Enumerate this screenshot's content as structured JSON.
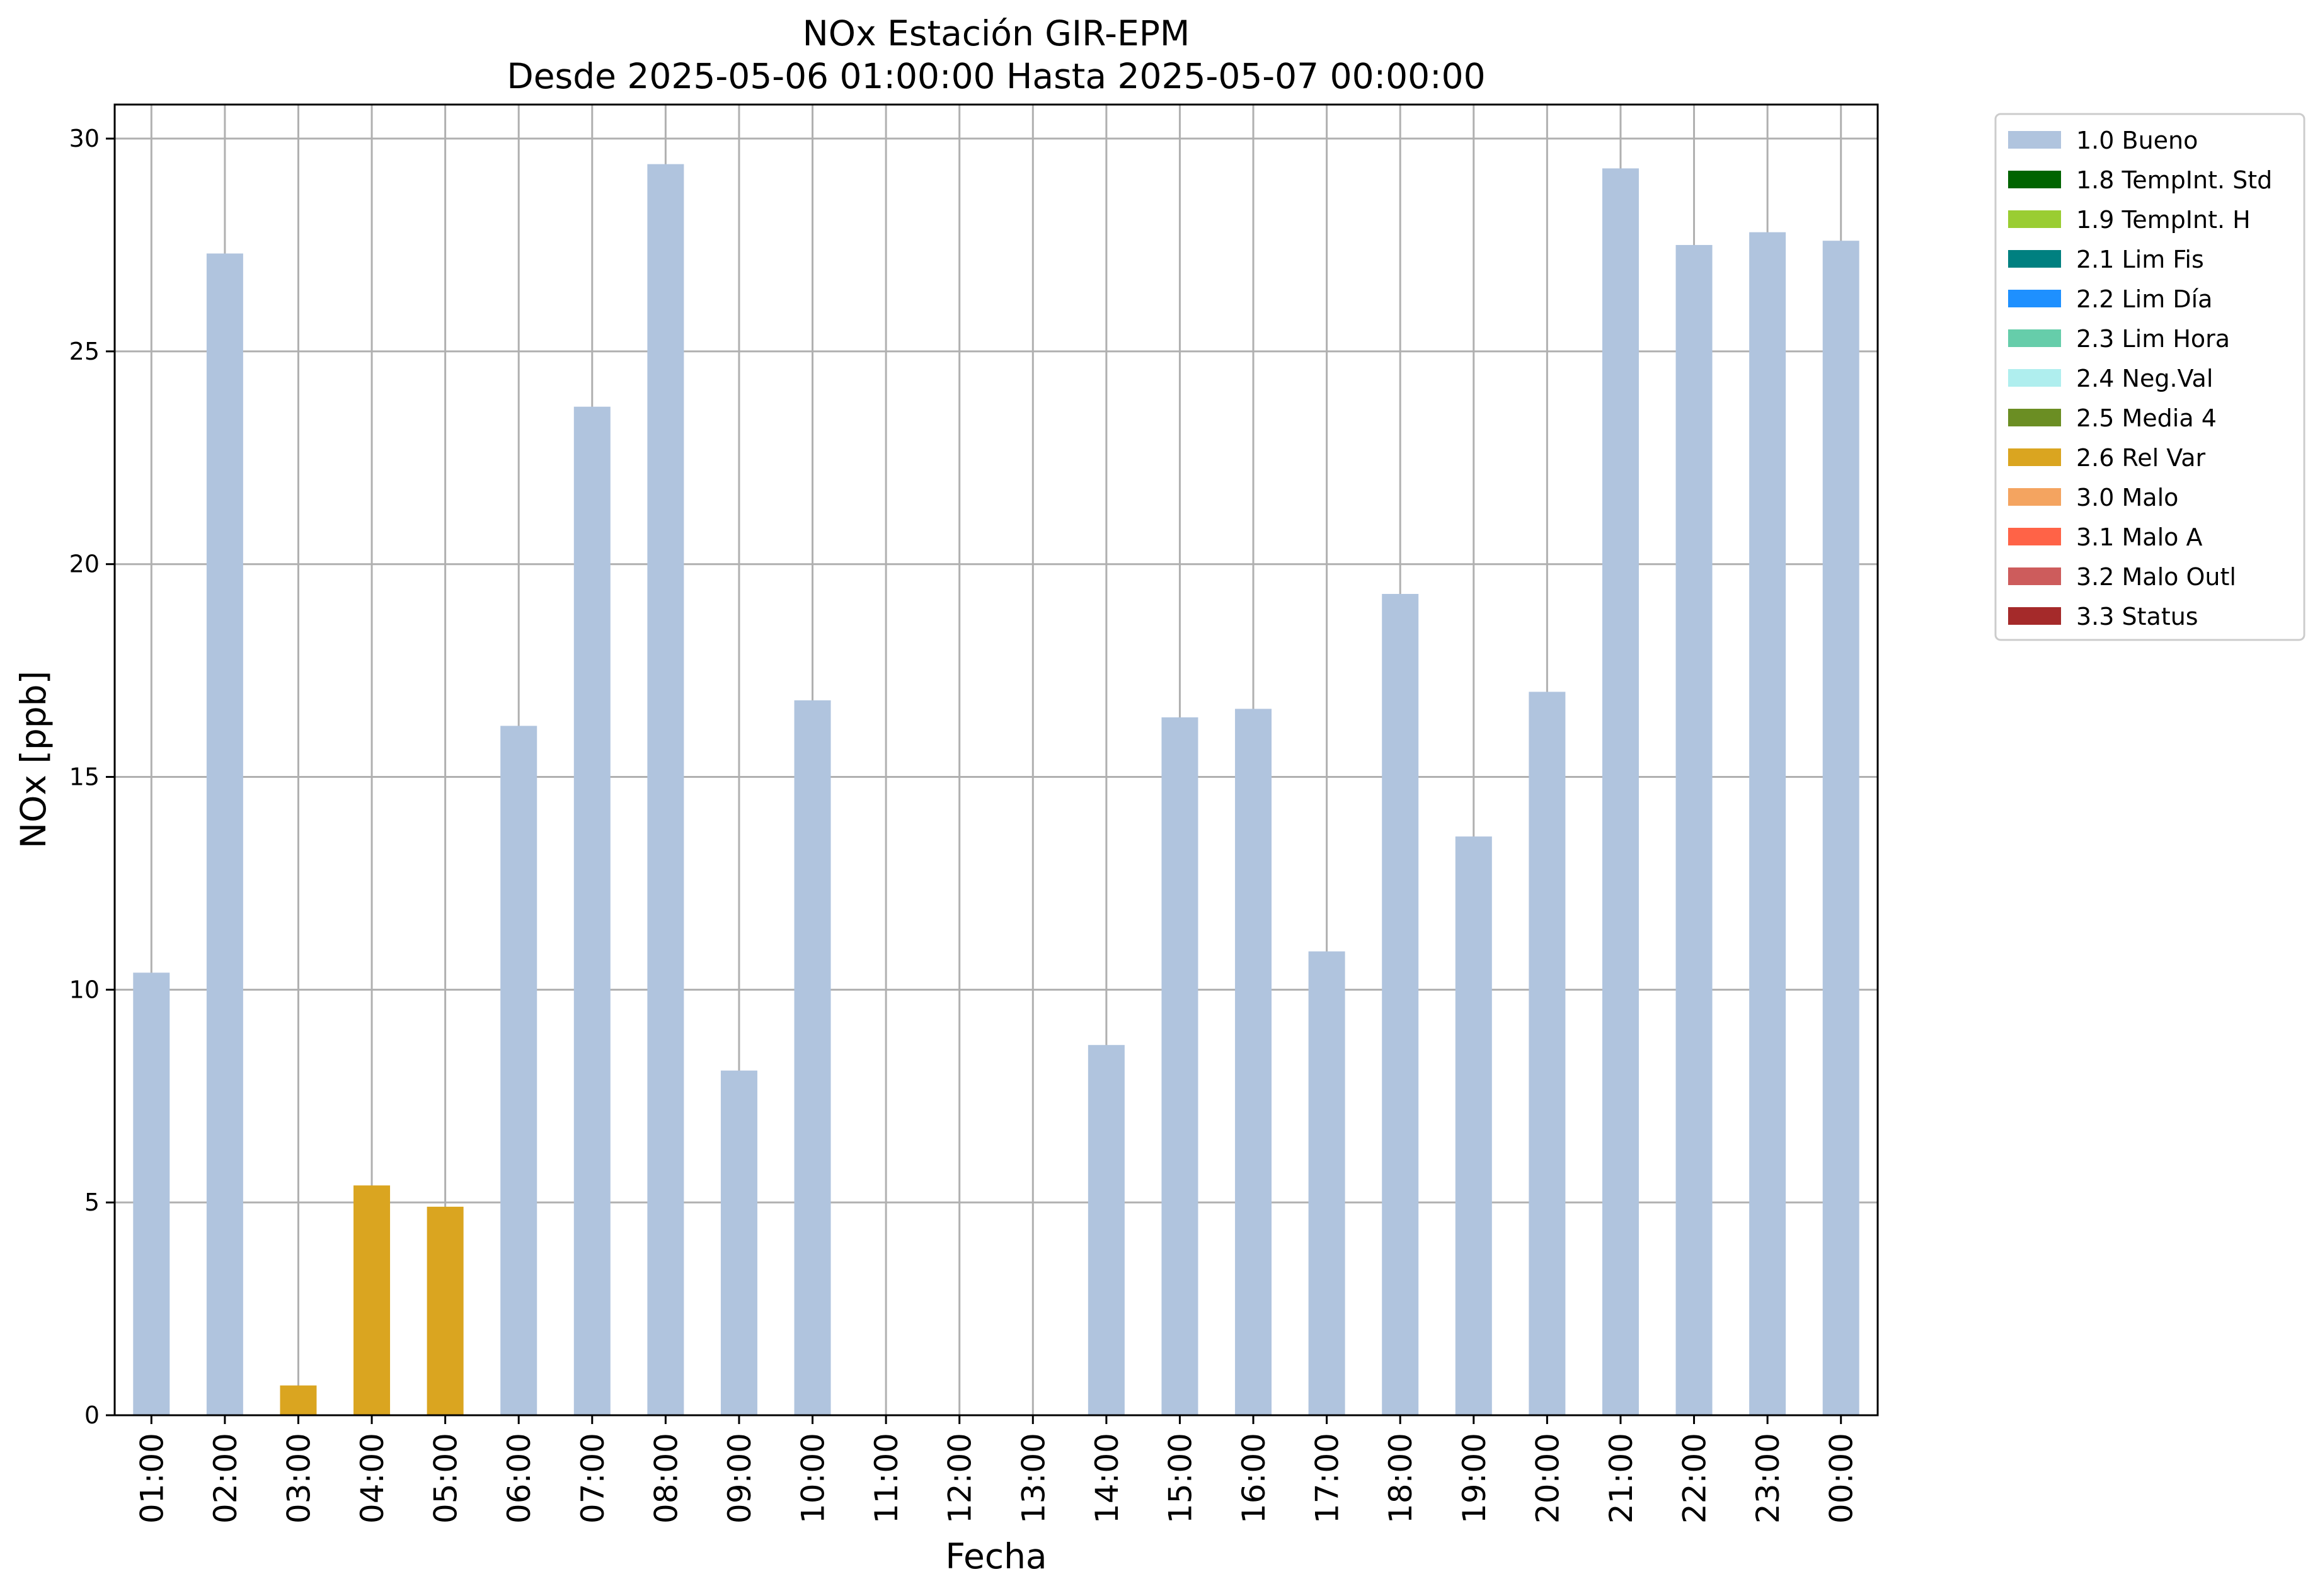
{
  "chart_data": {
    "type": "bar",
    "title": "NOx Estación GIR-EPM",
    "subtitle": "Desde 2025-05-06 01:00:00 Hasta 2025-05-07 00:00:00",
    "xlabel": "Fecha",
    "ylabel": "NOx [ppb]",
    "ylim": [
      0,
      30.8
    ],
    "yticks": [
      "0",
      "5",
      "10",
      "15",
      "20",
      "25",
      "30"
    ],
    "grid": true,
    "legend_position": "outside-top-right",
    "categories": [
      "01:00",
      "02:00",
      "03:00",
      "04:00",
      "05:00",
      "06:00",
      "07:00",
      "08:00",
      "09:00",
      "10:00",
      "11:00",
      "12:00",
      "13:00",
      "14:00",
      "15:00",
      "16:00",
      "17:00",
      "18:00",
      "19:00",
      "20:00",
      "21:00",
      "22:00",
      "23:00",
      "00:00"
    ],
    "values": [
      10.4,
      27.3,
      0.7,
      5.4,
      4.9,
      16.2,
      23.7,
      29.4,
      8.1,
      16.8,
      null,
      null,
      null,
      8.7,
      16.4,
      16.6,
      10.9,
      19.3,
      13.6,
      17.0,
      29.3,
      27.5,
      27.8,
      27.6
    ],
    "flags": [
      "1.0 Bueno",
      "1.0 Bueno",
      "2.6 Rel Var",
      "2.6 Rel Var",
      "2.6 Rel Var",
      "1.0 Bueno",
      "1.0 Bueno",
      "1.0 Bueno",
      "1.0 Bueno",
      "1.0 Bueno",
      null,
      null,
      null,
      "1.0 Bueno",
      "1.0 Bueno",
      "1.0 Bueno",
      "1.0 Bueno",
      "1.0 Bueno",
      "1.0 Bueno",
      "1.0 Bueno",
      "1.0 Bueno",
      "1.0 Bueno",
      "1.0 Bueno",
      "1.0 Bueno"
    ],
    "legend": [
      {
        "label": "1.0 Bueno",
        "color": "#b0c4de"
      },
      {
        "label": "1.8 TempInt. Std",
        "color": "#006400"
      },
      {
        "label": "1.9 TempInt. H",
        "color": "#9acd32"
      },
      {
        "label": "2.1 Lim Fis",
        "color": "#008080"
      },
      {
        "label": "2.2 Lim Día",
        "color": "#1e90ff"
      },
      {
        "label": "2.3 Lim Hora",
        "color": "#66cdaa"
      },
      {
        "label": "2.4 Neg.Val",
        "color": "#afeeee"
      },
      {
        "label": "2.5 Media 4",
        "color": "#6b8e23"
      },
      {
        "label": "2.6 Rel Var",
        "color": "#daa520"
      },
      {
        "label": "3.0 Malo",
        "color": "#f4a460"
      },
      {
        "label": "3.1 Malo A",
        "color": "#ff6347"
      },
      {
        "label": "3.2 Malo Outl",
        "color": "#cd5c5c"
      },
      {
        "label": "3.3 Status",
        "color": "#a52a2a"
      }
    ]
  }
}
